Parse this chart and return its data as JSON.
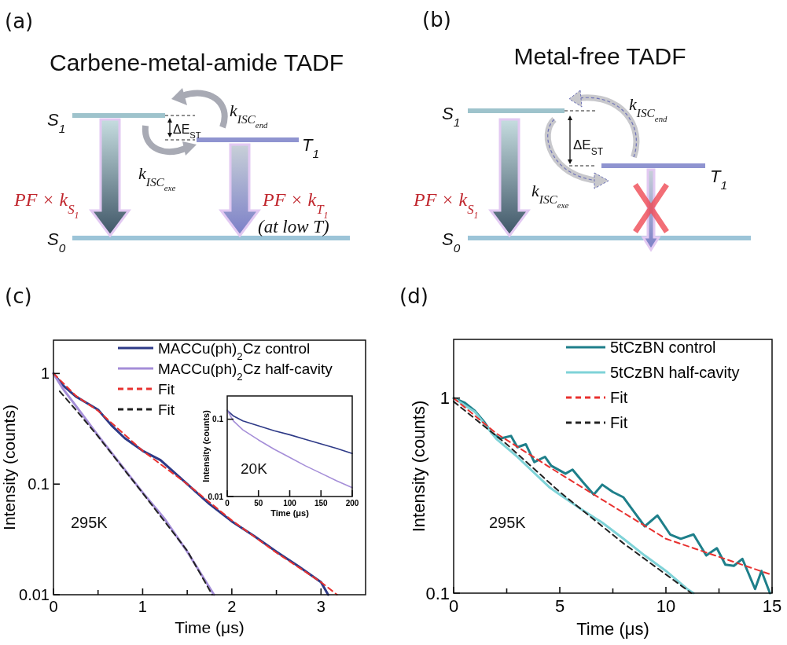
{
  "chart_data": [
    {
      "type": "other",
      "title": "Carbene-metal-amide TADF",
      "annotations": [
        "(a)",
        "S$_{1}$",
        "T$_{1}$",
        "S$_{0}$",
        "ΔE$_{ST}$",
        "k$_{ISC}$$_{end}$",
        "k$_{ISC}$$_{exe}$",
        "PF × k$_{S}$$_{1}$",
        "PF × k$_{T}$$_{1}$",
        "(at low T)"
      ]
    },
    {
      "type": "other",
      "title": "Metal-free TADF",
      "annotations": [
        "(b)",
        "S$_{1}$",
        "T$_{1}$",
        "S$_{0}$",
        "ΔE$_{ST}$",
        "k$_{ISC}$$_{end}$",
        "k$_{ISC}$$_{exe}$",
        "PF × k$_{S}$$_{1}$"
      ]
    },
    {
      "type": "line",
      "xlabel": "Time (μs)",
      "ylabel": "Intensity (counts)",
      "log": "y",
      "xlim": [
        0,
        3.5
      ],
      "ylim": [
        0.01,
        2
      ],
      "xticks": [
        0,
        {
          "value": 0.5,
          "label": null
        },
        1,
        {
          "value": 1.5,
          "label": null
        },
        2,
        {
          "value": 2.5,
          "label": null
        },
        3
      ],
      "yticks": [
        0.01,
        0.1,
        1
      ],
      "legend": "top right",
      "annotations": [
        "(c)",
        "295K"
      ],
      "series": [
        {
          "name": "MACCu(ph)$_{2}$Cz control",
          "color": "#2e3a87",
          "x": [
            0,
            0.1,
            0.25,
            0.5,
            0.65,
            0.8,
            1.0,
            1.2,
            1.5,
            1.75,
            2.0,
            2.25,
            2.5,
            2.75,
            3.0,
            3.08
          ],
          "values": [
            1,
            0.79,
            0.62,
            0.47,
            0.34,
            0.26,
            0.2,
            0.165,
            0.1,
            0.066,
            0.046,
            0.034,
            0.0245,
            0.018,
            0.013,
            0.01
          ]
        },
        {
          "name": "MACCu(ph)$_{2}$Cz half-cavity",
          "color": "#a58ed8",
          "x": [
            0,
            0.1,
            0.22,
            0.5,
            0.75,
            1.0,
            1.25,
            1.5,
            1.8
          ],
          "values": [
            1,
            0.74,
            0.55,
            0.275,
            0.152,
            0.084,
            0.048,
            0.0245,
            0.01
          ]
        },
        {
          "name": "Fit",
          "color": "#e8312f",
          "line_style": "dashed",
          "x": [
            0,
            0.25,
            0.5,
            1,
            1.5,
            2,
            2.5,
            3,
            3.18
          ],
          "values": [
            1,
            0.63,
            0.46,
            0.2,
            0.1,
            0.047,
            0.024,
            0.013,
            0.01
          ]
        },
        {
          "name": "Fit",
          "color": "#222222",
          "line_style": "dashed",
          "x": [
            0.07,
            0.25,
            0.5,
            1,
            1.5,
            1.78
          ],
          "values": [
            0.69,
            0.47,
            0.27,
            0.083,
            0.025,
            0.01
          ]
        }
      ]
    },
    {
      "type": "line",
      "xlabel": "Time (μs)",
      "ylabel": "Intensity (counts)",
      "log": "y",
      "xlim": [
        0,
        200
      ],
      "ylim": [
        0.01,
        0.2
      ],
      "xticks": [
        0,
        50,
        100,
        150,
        200
      ],
      "yticks": [
        0.01,
        0.1
      ],
      "annotations": [
        "20K"
      ],
      "series": [
        {
          "color": "#2e3a87",
          "x": [
            0,
            10,
            25,
            50,
            75,
            100,
            125,
            150,
            175,
            200
          ],
          "values": [
            0.13,
            0.11,
            0.095,
            0.082,
            0.071,
            0.063,
            0.055,
            0.048,
            0.042,
            0.036
          ]
        },
        {
          "color": "#a58ed8",
          "x": [
            0,
            10,
            25,
            50,
            75,
            100,
            125,
            150,
            175,
            200
          ],
          "values": [
            0.13,
            0.095,
            0.073,
            0.054,
            0.041,
            0.032,
            0.025,
            0.02,
            0.016,
            0.013
          ]
        }
      ]
    },
    {
      "type": "line",
      "xlabel": "Time (μs)",
      "ylabel": "Intensity (counts)",
      "log": "y",
      "xlim": [
        0,
        15
      ],
      "ylim": [
        0.1,
        2
      ],
      "xticks": [
        0,
        {
          "value": 2.5,
          "label": null
        },
        5,
        {
          "value": 7.5,
          "label": null
        },
        10,
        {
          "value": 12.5,
          "label": null
        },
        15
      ],
      "yticks": [
        0.1,
        1
      ],
      "legend": "top right",
      "annotations": [
        "(d)",
        "295K"
      ],
      "series": [
        {
          "name": "5tCzBN control",
          "color": "#1e7f8a",
          "x": [
            0,
            0.5,
            1,
            1.46,
            1.8,
            2.2,
            2.7,
            3,
            3.4,
            3.8,
            4.3,
            4.6,
            5.27,
            5.6,
            6.1,
            6.6,
            7,
            7.5,
            8,
            8.4,
            9,
            9.6,
            10.2,
            10.7,
            11.3,
            11.9,
            12.4,
            12.8,
            13.2,
            13.6,
            14.2,
            14.5,
            14.9
          ],
          "values": [
            1,
            0.95,
            0.86,
            0.75,
            0.66,
            0.62,
            0.64,
            0.56,
            0.58,
            0.47,
            0.5,
            0.45,
            0.41,
            0.43,
            0.37,
            0.32,
            0.36,
            0.33,
            0.31,
            0.27,
            0.22,
            0.25,
            0.2,
            0.19,
            0.2,
            0.156,
            0.17,
            0.14,
            0.138,
            0.15,
            0.105,
            0.13,
            0.1
          ]
        },
        {
          "name": "5tCzBN half-cavity",
          "color": "#7fd3d8",
          "x": [
            0,
            1,
            2,
            3,
            4.5,
            5,
            6,
            7,
            8,
            9,
            10,
            11,
            11.3
          ],
          "values": [
            1,
            0.85,
            0.62,
            0.5,
            0.35,
            0.32,
            0.27,
            0.23,
            0.19,
            0.156,
            0.13,
            0.105,
            0.1
          ]
        },
        {
          "name": "Fit",
          "color": "#e8312f",
          "line_style": "dashed",
          "x": [
            0,
            2,
            5,
            10,
            15
          ],
          "values": [
            1,
            0.66,
            0.41,
            0.19,
            0.124
          ]
        },
        {
          "name": "Fit",
          "color": "#222222",
          "line_style": "dashed",
          "x": [
            0,
            2.5,
            5,
            8,
            11.2
          ],
          "values": [
            0.96,
            0.58,
            0.33,
            0.18,
            0.1
          ]
        }
      ]
    }
  ]
}
